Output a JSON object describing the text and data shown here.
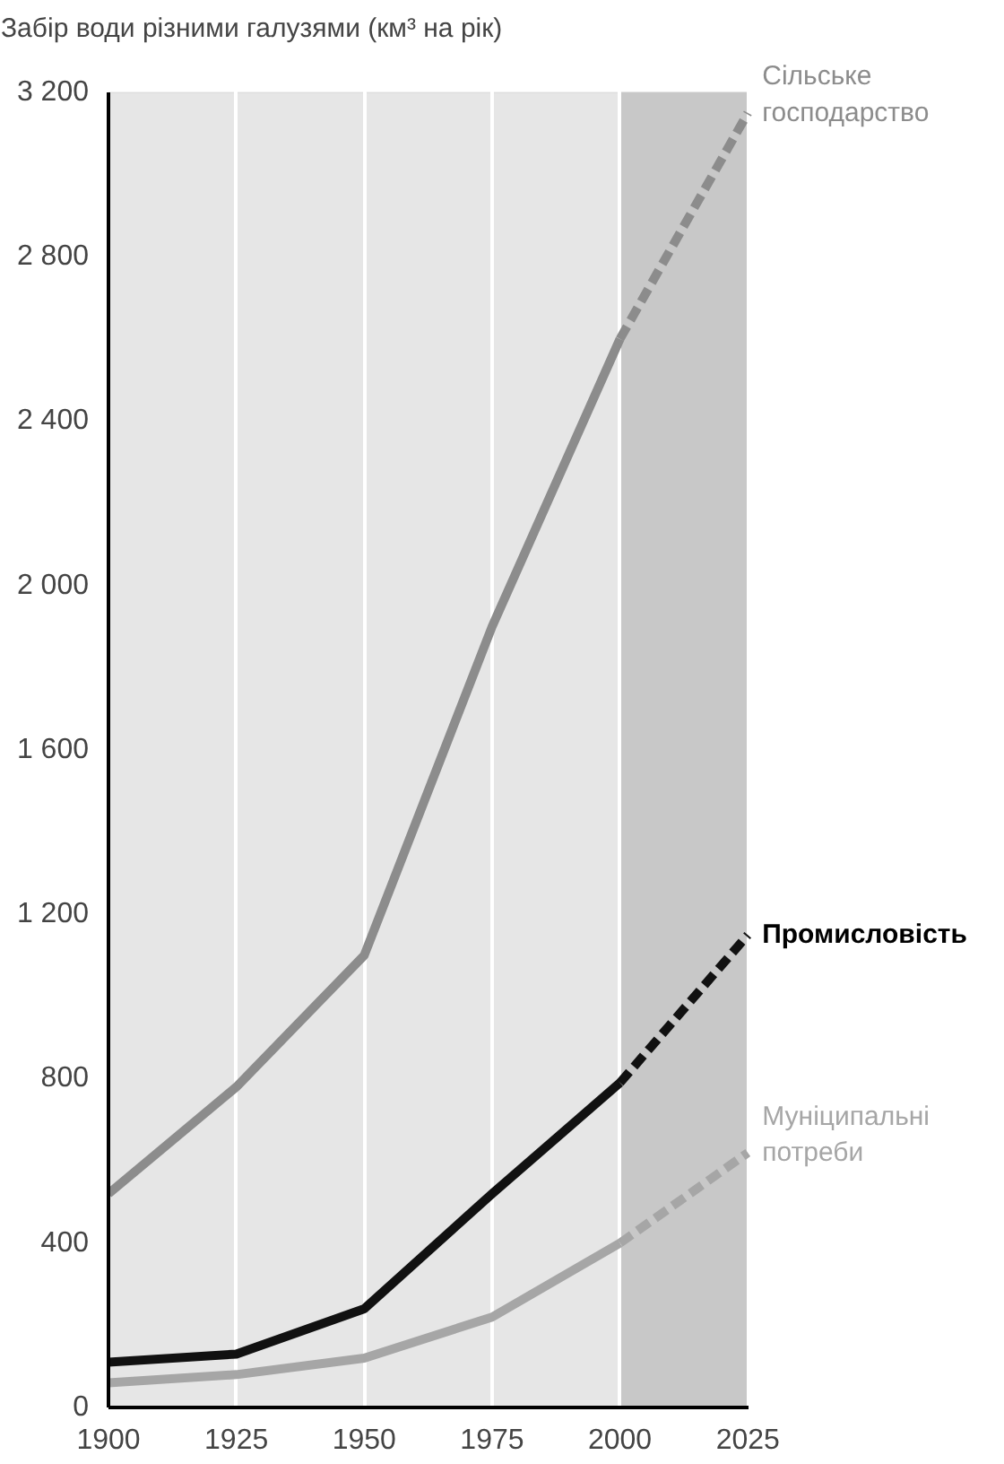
{
  "chart_data": {
    "type": "line",
    "title": "Забір води різними галузями (км³ на рік)",
    "x": [
      1900,
      1925,
      1950,
      1975,
      2000,
      2025
    ],
    "xlim": [
      1900,
      2025
    ],
    "xticks": [
      1900,
      1925,
      1950,
      1975,
      2000,
      2025
    ],
    "ylim": [
      0,
      3200
    ],
    "yticks": [
      0,
      {
        "value": 400,
        "label": "400"
      },
      {
        "value": 800,
        "label": "800"
      },
      {
        "value": 1200,
        "label": "1 200"
      },
      {
        "value": 1600,
        "label": "1 600"
      },
      {
        "value": 2000,
        "label": "2 000"
      },
      {
        "value": 2400,
        "label": "2 400"
      },
      {
        "value": 2800,
        "label": "2 800"
      },
      {
        "value": 3200,
        "label": "3 200"
      }
    ],
    "grid": "x",
    "line_style": "solid",
    "series": [
      {
        "name": "Сільське господарство",
        "color": "#8c8c8c",
        "values": [
          520,
          780,
          1100,
          1900,
          2600,
          null
        ]
      },
      {
        "color": "#8c8c8c",
        "values": [
          null,
          null,
          null,
          null,
          2600,
          3150
        ],
        "line_style": "dashed"
      },
      {
        "name": "Промисловість",
        "color": "#111111",
        "values": [
          110,
          130,
          240,
          520,
          790,
          null
        ]
      },
      {
        "color": "#111111",
        "values": [
          null,
          null,
          null,
          null,
          790,
          1150
        ],
        "line_style": "dashed"
      },
      {
        "name": "Муніципальні потреби",
        "color": "#a6a6a6",
        "values": [
          60,
          80,
          120,
          220,
          400,
          null
        ]
      },
      {
        "color": "#a6a6a6",
        "values": [
          null,
          null,
          null,
          null,
          400,
          620
        ],
        "line_style": "dashed"
      }
    ],
    "bands": [
      {
        "axis": "x",
        "from": 2000,
        "to": 2025,
        "color": "#c8c8c8"
      }
    ]
  }
}
